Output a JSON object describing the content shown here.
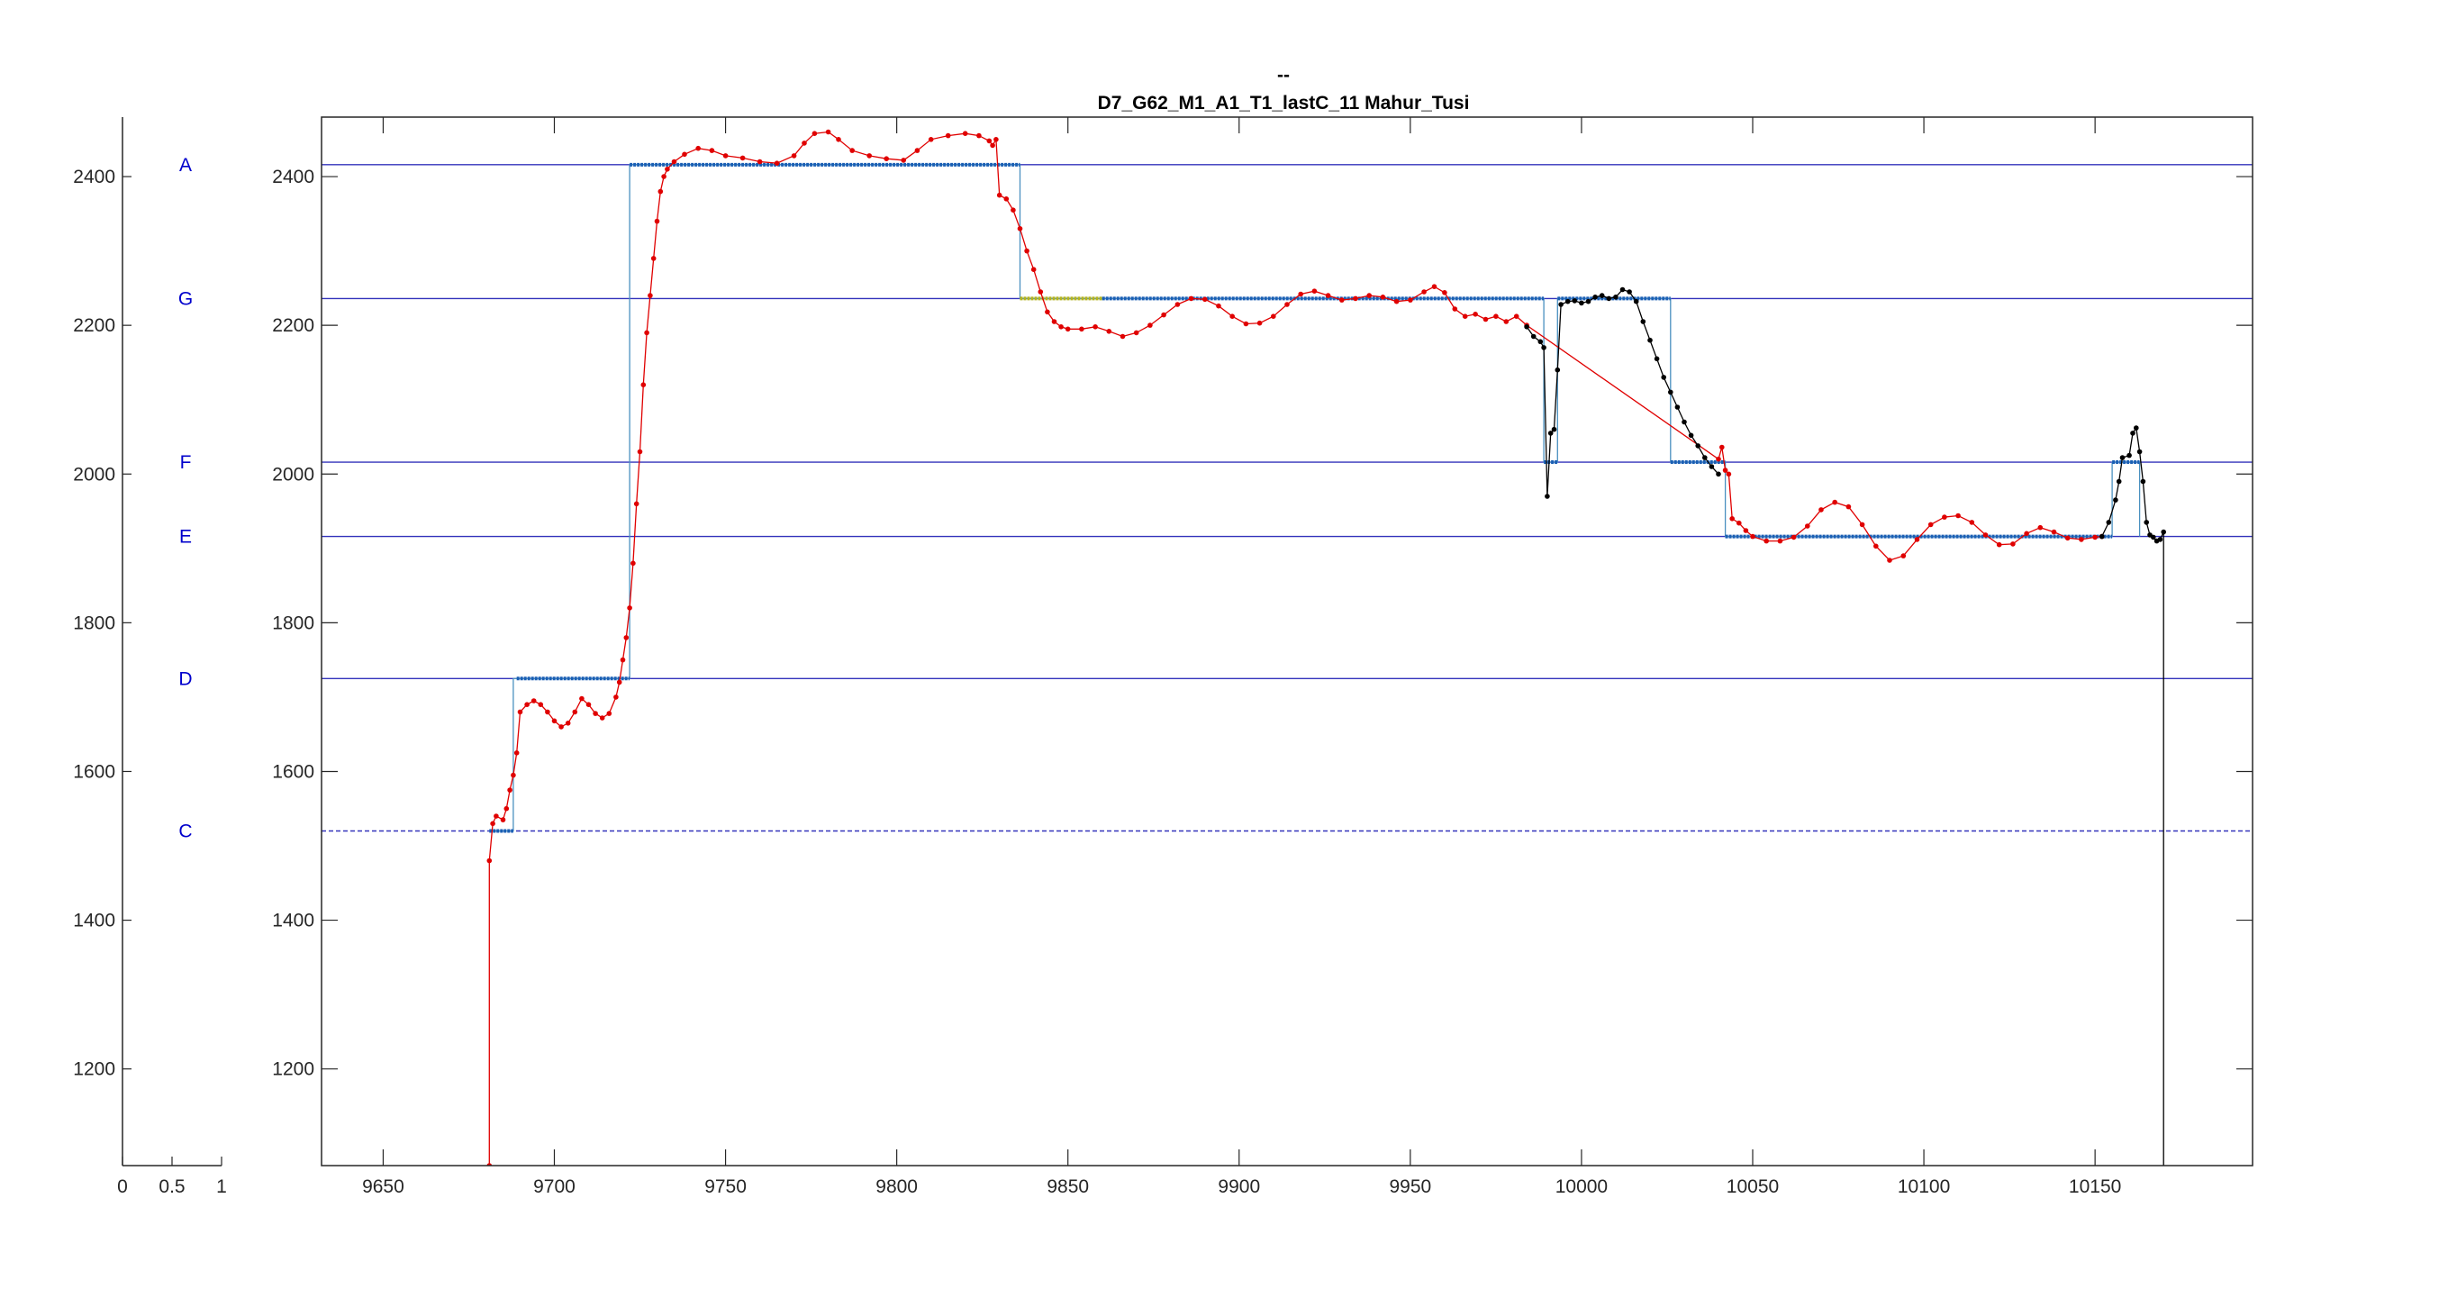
{
  "colors": {
    "reference_line": "#3333bb",
    "note_label": "#0000cc",
    "pitch_red": "#e00000",
    "pitch_black": "#000000",
    "step_blue": "#1a5fb4",
    "step_thin": "#4a90c0",
    "step_yellow": "#b4b41e",
    "axis": "#262626"
  },
  "chart_data": [
    {
      "type": "line",
      "role": "note-axis",
      "xlim": [
        0,
        1
      ],
      "ylim": [
        1070,
        2480
      ],
      "x_ticks": [
        "0",
        "0.5",
        "1"
      ],
      "y_ticks": [
        1200,
        1400,
        1600,
        1800,
        2000,
        2200,
        2400
      ],
      "notes": [
        {
          "label": "A",
          "value": 2416
        },
        {
          "label": "G",
          "value": 2236
        },
        {
          "label": "F",
          "value": 2016
        },
        {
          "label": "E",
          "value": 1916
        },
        {
          "label": "D",
          "value": 1725
        },
        {
          "label": "C",
          "value": 1520
        }
      ]
    },
    {
      "type": "line",
      "title_line1": "--",
      "title_line2": "D7_G62_M1_A1_T1_lastC_11 Mahur_Tusi",
      "xlim": [
        9632,
        10196
      ],
      "ylim": [
        1070,
        2480
      ],
      "x_ticks": [
        9650,
        9700,
        9750,
        9800,
        9850,
        9900,
        9950,
        10000,
        10050,
        10100,
        10150
      ],
      "y_ticks": [
        1200,
        1400,
        1600,
        1800,
        2000,
        2200,
        2400
      ],
      "grid": false,
      "reference_lines": [
        2416,
        2236,
        2016,
        1916,
        1725,
        1520
      ],
      "series": [
        {
          "style": "red-dots",
          "points": [
            [
              9681,
              1070
            ],
            [
              9681,
              1480
            ],
            [
              9682,
              1530
            ],
            [
              9683,
              1540
            ],
            [
              9685,
              1535
            ],
            [
              9686,
              1550
            ],
            [
              9687,
              1575
            ],
            [
              9688,
              1595
            ],
            [
              9689,
              1625
            ],
            [
              9690,
              1680
            ],
            [
              9692,
              1690
            ],
            [
              9694,
              1695
            ],
            [
              9696,
              1690
            ],
            [
              9698,
              1680
            ],
            [
              9700,
              1668
            ],
            [
              9702,
              1660
            ],
            [
              9704,
              1665
            ],
            [
              9706,
              1680
            ],
            [
              9708,
              1698
            ],
            [
              9710,
              1690
            ],
            [
              9712,
              1678
            ],
            [
              9714,
              1672
            ],
            [
              9716,
              1678
            ],
            [
              9718,
              1700
            ],
            [
              9719,
              1720
            ],
            [
              9720,
              1750
            ],
            [
              9721,
              1780
            ],
            [
              9722,
              1820
            ],
            [
              9723,
              1880
            ],
            [
              9724,
              1960
            ],
            [
              9725,
              2030
            ],
            [
              9726,
              2120
            ],
            [
              9727,
              2190
            ],
            [
              9728,
              2240
            ],
            [
              9729,
              2290
            ],
            [
              9730,
              2340
            ],
            [
              9731,
              2380
            ],
            [
              9732,
              2400
            ],
            [
              9733,
              2410
            ],
            [
              9735,
              2420
            ],
            [
              9738,
              2430
            ],
            [
              9742,
              2438
            ],
            [
              9746,
              2435
            ],
            [
              9750,
              2428
            ],
            [
              9755,
              2425
            ],
            [
              9760,
              2420
            ],
            [
              9765,
              2418
            ],
            [
              9770,
              2428
            ],
            [
              9773,
              2445
            ],
            [
              9776,
              2458
            ],
            [
              9780,
              2460
            ],
            [
              9783,
              2450
            ],
            [
              9787,
              2435
            ],
            [
              9792,
              2428
            ],
            [
              9797,
              2424
            ],
            [
              9802,
              2422
            ],
            [
              9806,
              2435
            ],
            [
              9810,
              2450
            ],
            [
              9815,
              2455
            ],
            [
              9820,
              2458
            ],
            [
              9824,
              2455
            ],
            [
              9827,
              2448
            ],
            [
              9828,
              2442
            ],
            [
              9829,
              2450
            ],
            [
              9830,
              2375
            ],
            [
              9832,
              2370
            ],
            [
              9834,
              2355
            ],
            [
              9836,
              2330
            ],
            [
              9838,
              2300
            ],
            [
              9840,
              2275
            ],
            [
              9842,
              2245
            ],
            [
              9844,
              2218
            ],
            [
              9846,
              2205
            ],
            [
              9848,
              2198
            ],
            [
              9850,
              2195
            ],
            [
              9854,
              2195
            ],
            [
              9858,
              2198
            ],
            [
              9862,
              2192
            ],
            [
              9866,
              2185
            ],
            [
              9870,
              2190
            ],
            [
              9874,
              2200
            ],
            [
              9878,
              2214
            ],
            [
              9882,
              2228
            ],
            [
              9886,
              2236
            ],
            [
              9890,
              2235
            ],
            [
              9894,
              2226
            ],
            [
              9898,
              2212
            ],
            [
              9902,
              2202
            ],
            [
              9906,
              2203
            ],
            [
              9910,
              2212
            ],
            [
              9914,
              2228
            ],
            [
              9918,
              2242
            ],
            [
              9922,
              2246
            ],
            [
              9926,
              2240
            ],
            [
              9930,
              2234
            ],
            [
              9934,
              2236
            ],
            [
              9938,
              2240
            ],
            [
              9942,
              2238
            ],
            [
              9946,
              2232
            ],
            [
              9950,
              2234
            ],
            [
              9954,
              2245
            ],
            [
              9957,
              2252
            ],
            [
              9960,
              2244
            ],
            [
              9963,
              2222
            ],
            [
              9966,
              2212
            ],
            [
              9969,
              2215
            ],
            [
              9972,
              2208
            ],
            [
              9975,
              2212
            ],
            [
              9978,
              2205
            ],
            [
              9981,
              2212
            ],
            [
              9984,
              2200
            ],
            [
              10040,
              2020
            ],
            [
              10041,
              2036
            ],
            [
              10042,
              2005
            ],
            [
              10043,
              2000
            ],
            [
              10044,
              1940
            ],
            [
              10046,
              1934
            ],
            [
              10048,
              1924
            ],
            [
              10050,
              1916
            ],
            [
              10054,
              1910
            ],
            [
              10058,
              1910
            ],
            [
              10062,
              1915
            ],
            [
              10066,
              1930
            ],
            [
              10070,
              1952
            ],
            [
              10074,
              1962
            ],
            [
              10078,
              1956
            ],
            [
              10082,
              1932
            ],
            [
              10086,
              1903
            ],
            [
              10090,
              1884
            ],
            [
              10094,
              1890
            ],
            [
              10098,
              1912
            ],
            [
              10102,
              1932
            ],
            [
              10106,
              1942
            ],
            [
              10110,
              1944
            ],
            [
              10114,
              1935
            ],
            [
              10118,
              1918
            ],
            [
              10122,
              1905
            ],
            [
              10126,
              1906
            ],
            [
              10130,
              1920
            ],
            [
              10134,
              1928
            ],
            [
              10138,
              1922
            ],
            [
              10142,
              1914
            ],
            [
              10146,
              1912
            ],
            [
              10150,
              1915
            ],
            [
              10152,
              1916
            ]
          ]
        },
        {
          "style": "black-dots",
          "points": [
            [
              9984,
              2198
            ],
            [
              9986,
              2185
            ],
            [
              9988,
              2178
            ],
            [
              9989,
              2170
            ],
            [
              9990,
              1970
            ],
            [
              9991,
              2055
            ],
            [
              9992,
              2060
            ],
            [
              9993,
              2140
            ],
            [
              9994,
              2228
            ],
            [
              9996,
              2232
            ],
            [
              9998,
              2233
            ],
            [
              10000,
              2230
            ],
            [
              10002,
              2232
            ],
            [
              10004,
              2238
            ],
            [
              10006,
              2240
            ],
            [
              10008,
              2236
            ],
            [
              10010,
              2238
            ],
            [
              10012,
              2248
            ],
            [
              10014,
              2245
            ],
            [
              10016,
              2232
            ],
            [
              10018,
              2205
            ],
            [
              10020,
              2180
            ],
            [
              10022,
              2155
            ],
            [
              10024,
              2130
            ],
            [
              10026,
              2110
            ],
            [
              10028,
              2090
            ],
            [
              10030,
              2070
            ],
            [
              10032,
              2052
            ],
            [
              10034,
              2038
            ],
            [
              10036,
              2022
            ],
            [
              10038,
              2010
            ],
            [
              10040,
              2000
            ],
            [
              10152,
              1916
            ],
            [
              10154,
              1935
            ],
            [
              10156,
              1965
            ],
            [
              10157,
              1990
            ],
            [
              10158,
              2022
            ],
            [
              10160,
              2025
            ],
            [
              10161,
              2055
            ],
            [
              10162,
              2062
            ],
            [
              10163,
              2030
            ],
            [
              10164,
              1990
            ],
            [
              10165,
              1935
            ],
            [
              10166,
              1918
            ],
            [
              10167,
              1915
            ],
            [
              10168,
              1910
            ],
            [
              10169,
              1912
            ],
            [
              10170,
              1922
            ],
            [
              10170,
              1070
            ]
          ]
        },
        {
          "style": "step",
          "points": [
            [
              9681,
              1520
            ],
            [
              9688,
              1520
            ],
            [
              9688,
              1725
            ],
            [
              9722,
              1725
            ],
            [
              9722,
              2416
            ],
            [
              9836,
              2416
            ],
            [
              9836,
              2236
            ],
            [
              9989,
              2236
            ],
            [
              9989,
              2016
            ],
            [
              9993,
              2016
            ],
            [
              9993,
              2236
            ],
            [
              10026,
              2236
            ],
            [
              10026,
              2016
            ],
            [
              10042,
              2016
            ],
            [
              10042,
              1916
            ],
            [
              10155,
              1916
            ],
            [
              10155,
              2016
            ],
            [
              10163,
              2016
            ],
            [
              10163,
              1916
            ]
          ],
          "segments": [
            {
              "x": [
                9681,
                9688
              ],
              "value": 1520,
              "color": "blue"
            },
            {
              "x": [
                9689,
                9722
              ],
              "value": 1725,
              "color": "blue"
            },
            {
              "x": [
                9722,
                9836
              ],
              "value": 2416,
              "color": "blue"
            },
            {
              "x": [
                9836,
                9860
              ],
              "value": 2236,
              "color": "yellow"
            },
            {
              "x": [
                9860,
                9989
              ],
              "value": 2236,
              "color": "blue"
            },
            {
              "x": [
                9989,
                9993
              ],
              "value": 2016,
              "color": "blue"
            },
            {
              "x": [
                9993,
                10026
              ],
              "value": 2236,
              "color": "blue"
            },
            {
              "x": [
                10026,
                10042
              ],
              "value": 2016,
              "color": "blue"
            },
            {
              "x": [
                10042,
                10155
              ],
              "value": 1916,
              "color": "blue"
            },
            {
              "x": [
                10155,
                10163
              ],
              "value": 2016,
              "color": "blue"
            }
          ]
        }
      ]
    }
  ]
}
